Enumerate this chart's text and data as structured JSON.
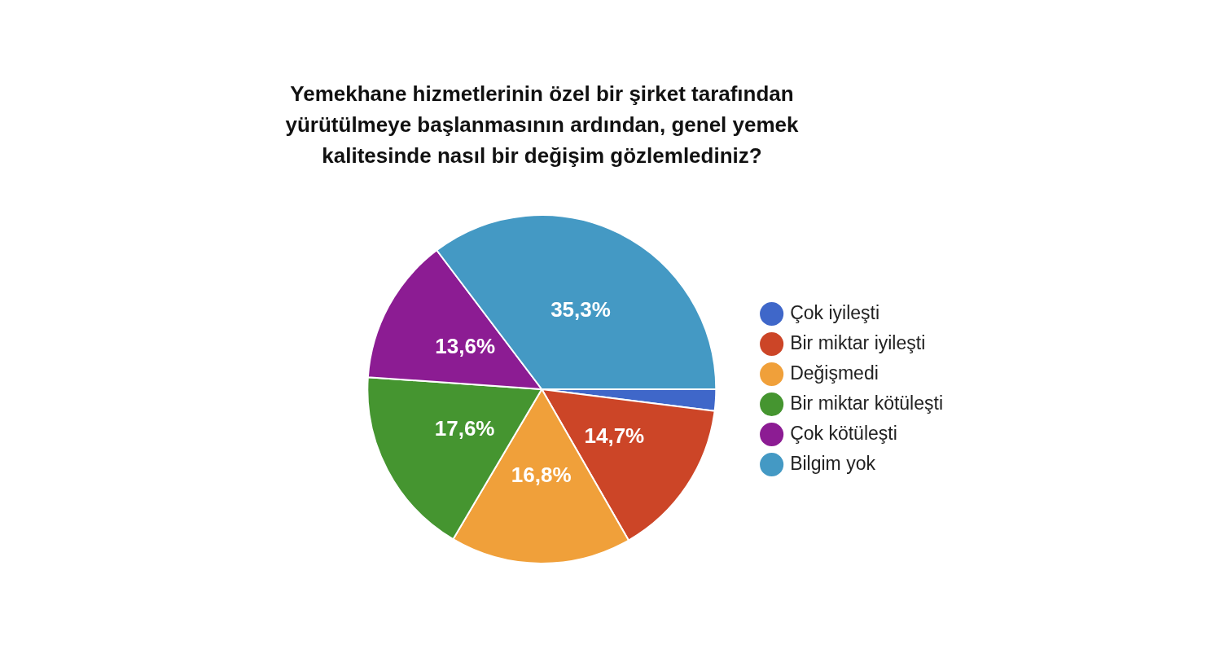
{
  "chart_data": {
    "type": "pie",
    "title": "Yemekhane hizmetlerinin özel bir şirket tarafından yürütülmeye başlanmasının ardından, genel yemek kalitesinde nasıl bir değişim gözlemlediniz?",
    "categories": [
      "Çok iyileşti",
      "Bir miktar iyileşti",
      "Değişmedi",
      "Bir miktar kötüleşti",
      "Çok kötüleşti",
      "Bilgim yok"
    ],
    "values": [
      2.0,
      14.7,
      16.8,
      17.6,
      13.6,
      35.3
    ],
    "value_labels": [
      null,
      "14,7%",
      "16,8%",
      "17,6%",
      "13,6%",
      "35,3%"
    ],
    "colors": [
      "#3f67c9",
      "#cc4527",
      "#f0a03a",
      "#459530",
      "#8c1c93",
      "#4499c4"
    ],
    "legend": "right"
  }
}
